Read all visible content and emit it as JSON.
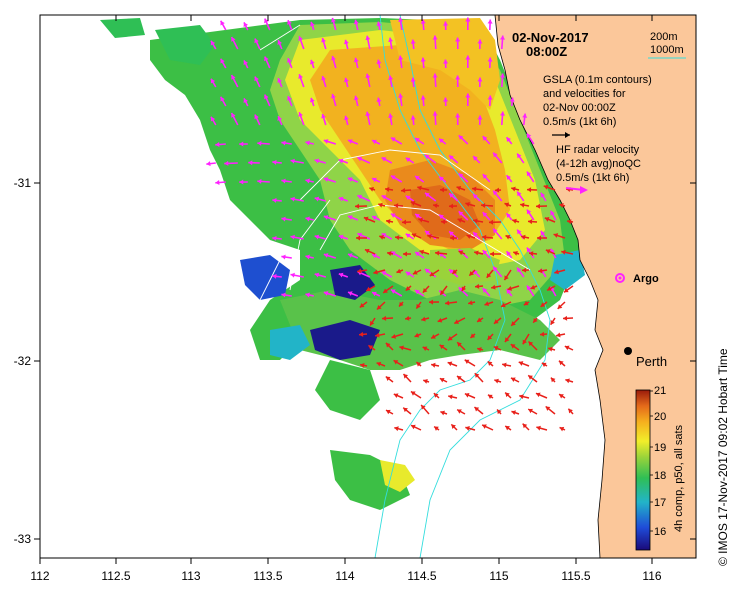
{
  "title": {
    "date": "02-Nov-2017",
    "time": "08:00Z"
  },
  "contours_legend": {
    "line1": "200m",
    "line2": "1000m"
  },
  "gsla_legend": {
    "line1": "GSLA (0.1m contours)",
    "line2": "and velocities for",
    "line3": "02-Nov 00:00Z",
    "scale": "0.5m/s (1kt 6h)"
  },
  "radar_legend": {
    "line1": "HF radar velocity",
    "line2": "(4-12h avg)noQC",
    "scale": "0.5m/s (1kt 6h)"
  },
  "markers": {
    "argo": "Argo",
    "perth": "Perth"
  },
  "axes": {
    "x_ticks": [
      "112",
      "112.5",
      "113",
      "113.5",
      "114",
      "114.5",
      "115",
      "115.5",
      "116"
    ],
    "y_ticks": [
      "-31",
      "-32",
      "-33"
    ]
  },
  "colorbar": {
    "label": "4h comp, p50, all sats",
    "ticks": [
      "21",
      "20",
      "19",
      "18",
      "17",
      "16"
    ]
  },
  "credit": "© IMOS 17-Nov-2017 09:02 Hobart Time",
  "colors": {
    "land": "#fbc79a",
    "gsla_arrow": "#ff22ff",
    "radar_arrow": "#e8201a",
    "contour": "#33dddd",
    "gsla_contour": "#ffffff"
  }
}
